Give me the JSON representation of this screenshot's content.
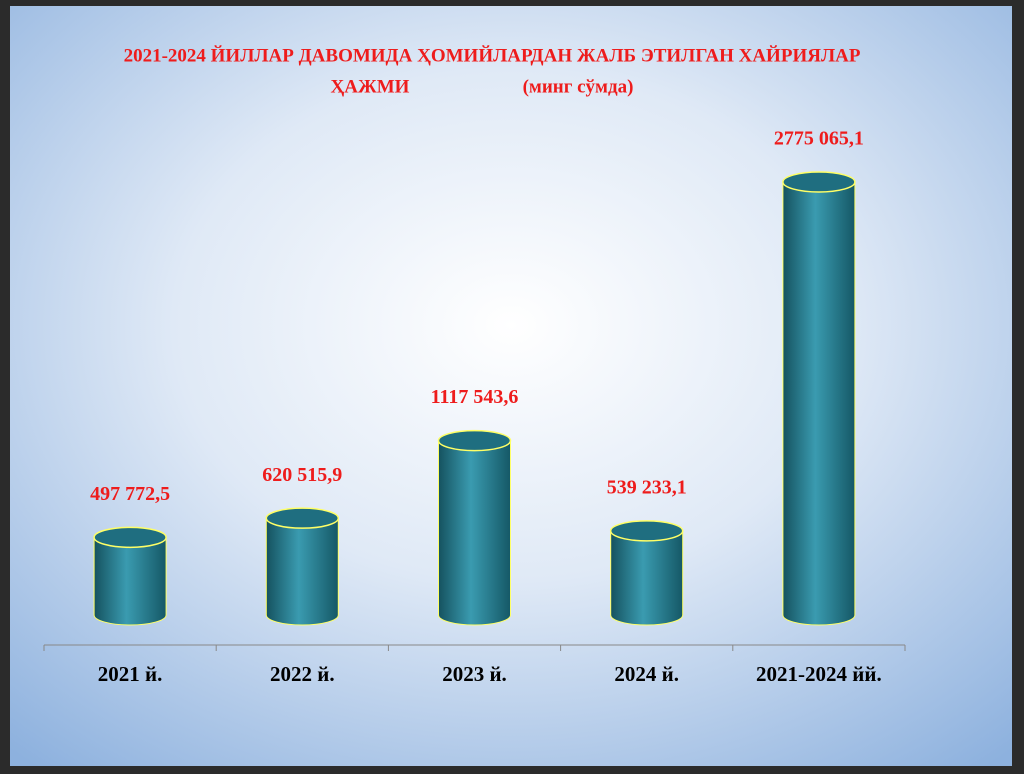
{
  "chart_data": {
    "type": "bar",
    "title": [
      "2021-2024  ЙИЛЛАР ДАВОМИДА  ҲОМИЙЛАРДАН  ЖАЛБ ЭТИЛГАН ХАЙРИЯЛАР",
      "ҲАЖМИ"
    ],
    "subtitle": "(минг сўмда)",
    "categories": [
      "2021 й.",
      "2022 й.",
      "2023 й.",
      "2024 й.",
      "2021-2024 йй."
    ],
    "values": [
      497772.5,
      620515.9,
      1117543.6,
      539233.1,
      2775065.1
    ],
    "value_labels": [
      "497 772,5",
      "620 515,9",
      "1117 543,6",
      "539 233,1",
      "2775 065,1"
    ],
    "color": "#1f6e80"
  }
}
